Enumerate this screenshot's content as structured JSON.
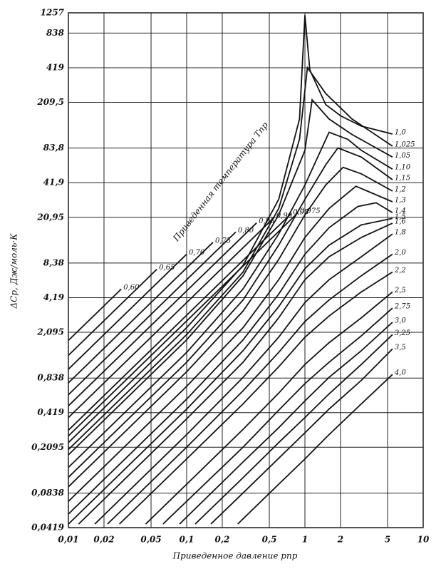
{
  "chart_data": {
    "type": "line",
    "xscale": "log",
    "yscale": "log",
    "grid": true,
    "color": "#111111",
    "ylabel": "ΔCp, Дж/моль·К",
    "xlabel": "Приведенное давление pпр",
    "annotation": "Приведенная температура Тпр",
    "xlim": [
      0.01,
      10
    ],
    "ylim": [
      0.0419,
      1257
    ],
    "xticks": [
      {
        "value": 0.01,
        "label": "0,01"
      },
      {
        "value": 0.02,
        "label": "0,02"
      },
      {
        "value": 0.05,
        "label": "0,05"
      },
      {
        "value": 0.1,
        "label": "0,1"
      },
      {
        "value": 0.2,
        "label": "0,2"
      },
      {
        "value": 0.5,
        "label": "0,5"
      },
      1,
      2,
      5,
      10
    ],
    "yticks": [
      {
        "value": 0.0419,
        "label": "0,0419"
      },
      {
        "value": 0.0838,
        "label": "0,0838"
      },
      {
        "value": 0.2095,
        "label": "0,2095"
      },
      {
        "value": 0.419,
        "label": "0,419"
      },
      {
        "value": 0.838,
        "label": "0,838"
      },
      {
        "value": 2.095,
        "label": "2,095"
      },
      {
        "value": 4.19,
        "label": "4,19"
      },
      {
        "value": 8.38,
        "label": "8,38"
      },
      {
        "value": 20.95,
        "label": "20,95"
      },
      {
        "value": 41.9,
        "label": "41,9"
      },
      {
        "value": 83.8,
        "label": "83,8"
      },
      {
        "value": 209.5,
        "label": "209,5"
      },
      419,
      838,
      1257
    ],
    "series": [
      {
        "name": "0,60",
        "x": [
          0.01,
          0.028
        ],
        "values": [
          1.78,
          4.98
        ]
      },
      {
        "name": "0,65",
        "x": [
          0.01,
          0.056
        ],
        "values": [
          1.32,
          7.4
        ]
      },
      {
        "name": "0,70",
        "x": [
          0.01,
          0.1
        ],
        "values": [
          1.0,
          10
        ]
      },
      {
        "name": "0,75",
        "x": [
          0.01,
          0.167
        ],
        "values": [
          0.76,
          12.7
        ]
      },
      {
        "name": "0,80",
        "x": [
          0.01,
          0.26
        ],
        "values": [
          0.6,
          15.6
        ]
      },
      {
        "name": "0,85",
        "x": [
          0.01,
          0.39
        ],
        "values": [
          0.48,
          18.7
        ]
      },
      {
        "name": "0,90",
        "x": [
          0.01,
          0.55
        ],
        "values": [
          0.38,
          20.9
        ]
      },
      {
        "name": "0,95",
        "x": [
          0.01,
          0.76
        ],
        "values": [
          0.295,
          22.4
        ]
      },
      {
        "name": "0,975",
        "x": [
          0.01,
          0.87
        ],
        "values": [
          0.263,
          22.9
        ]
      },
      {
        "name": "1,0",
        "x": [
          0.01,
          0.1,
          0.3,
          0.6,
          0.9,
          1.0,
          1.1,
          1.5,
          2,
          3,
          5.5
        ],
        "values": [
          0.23,
          2.3,
          8,
          30,
          150,
          1200,
          400,
          200,
          160,
          130,
          111
        ]
      },
      {
        "name": "1,025",
        "x": [
          0.01,
          0.1,
          0.3,
          0.6,
          0.9,
          1.05,
          1.5,
          2.5,
          5.5
        ],
        "values": [
          0.2,
          2.0,
          7,
          25,
          100,
          420,
          250,
          150,
          87
        ]
      },
      {
        "name": "1,05",
        "x": [
          0.01,
          0.1,
          0.3,
          0.6,
          1,
          1.15,
          1.6,
          2.5,
          5.5
        ],
        "values": [
          0.18,
          1.8,
          6.5,
          22,
          80,
          220,
          150,
          110,
          70
        ]
      },
      {
        "name": "1,10",
        "x": [
          0.01,
          0.1,
          0.3,
          0.6,
          1,
          1.6,
          2.3,
          3,
          5.5
        ],
        "values": [
          0.14,
          1.4,
          5,
          15,
          40,
          115,
          100,
          80,
          55
        ]
      },
      {
        "name": "1,15",
        "x": [
          0.01,
          0.1,
          0.3,
          0.6,
          1,
          1.5,
          1.9,
          3,
          5.5
        ],
        "values": [
          0.115,
          1.15,
          4,
          12,
          30,
          60,
          84,
          70,
          44.5
        ]
      },
      {
        "name": "1,2",
        "x": [
          0.01,
          0.1,
          0.3,
          0.6,
          1,
          1.5,
          2.1,
          3,
          5.5
        ],
        "values": [
          0.095,
          0.95,
          3.2,
          9,
          22,
          40,
          57,
          50,
          35.4
        ]
      },
      {
        "name": "1,3",
        "x": [
          0.01,
          0.1,
          0.3,
          0.6,
          1,
          1.6,
          2.7,
          5.5
        ],
        "values": [
          0.071,
          0.71,
          2.3,
          6,
          14,
          25,
          39,
          28.6
        ]
      },
      {
        "name": "1,4",
        "x": [
          0.01,
          0.1,
          0.3,
          0.6,
          1,
          1.6,
          2.8,
          4,
          5.5
        ],
        "values": [
          0.055,
          0.55,
          1.8,
          4.5,
          10,
          17,
          26,
          28,
          23
        ]
      },
      {
        "name": "1,5",
        "x": [
          0.01,
          0.1,
          0.3,
          0.6,
          1,
          1.6,
          3,
          5.5
        ],
        "values": [
          0.045,
          0.45,
          1.45,
          3.5,
          7.5,
          12,
          18,
          20.5
        ]
      },
      {
        "name": "1,6",
        "x": [
          0.0122,
          0.1,
          0.3,
          0.6,
          1,
          1.6,
          3,
          5.5
        ],
        "values": [
          0.045,
          0.37,
          1.15,
          2.8,
          6,
          9.5,
          14,
          18.6
        ]
      },
      {
        "name": "1,8",
        "x": [
          0.0167,
          0.1,
          0.3,
          0.6,
          1,
          1.6,
          3,
          5.5
        ],
        "values": [
          0.045,
          0.27,
          0.85,
          1.9,
          3.8,
          6,
          9.5,
          15
        ]
      },
      {
        "name": "2,0",
        "x": [
          0.0214,
          0.1,
          0.3,
          0.6,
          1,
          1.6,
          3,
          5.5
        ],
        "values": [
          0.045,
          0.21,
          0.65,
          1.4,
          2.6,
          4,
          6.5,
          10
        ]
      },
      {
        "name": "2,2",
        "x": [
          0.027,
          0.1,
          0.3,
          0.6,
          1,
          1.6,
          3,
          5.5
        ],
        "values": [
          0.045,
          0.166,
          0.5,
          1.05,
          1.9,
          2.9,
          4.7,
          7.0
        ]
      },
      {
        "name": "2,5",
        "x": [
          0.045,
          0.1,
          0.3,
          0.6,
          1,
          1.6,
          3,
          5.5
        ],
        "values": [
          0.045,
          0.1,
          0.3,
          0.62,
          1.1,
          1.7,
          2.8,
          4.7
        ]
      },
      {
        "name": "2,75",
        "x": [
          0.063,
          0.1,
          0.3,
          0.6,
          1,
          1.6,
          3,
          5.5
        ],
        "values": [
          0.045,
          0.071,
          0.21,
          0.44,
          0.75,
          1.15,
          1.95,
          3.4
        ]
      },
      {
        "name": "3,0",
        "x": [
          0.087,
          0.3,
          0.6,
          1,
          1.6,
          3,
          5.5
        ],
        "values": [
          0.045,
          0.156,
          0.31,
          0.53,
          0.85,
          1.45,
          2.56
        ]
      },
      {
        "name": "3,25",
        "x": [
          0.118,
          0.3,
          0.6,
          1,
          1.6,
          3,
          5.5
        ],
        "values": [
          0.045,
          0.114,
          0.23,
          0.38,
          0.61,
          1.1,
          2.0
        ]
      },
      {
        "name": "3,5",
        "x": [
          0.16,
          0.3,
          0.6,
          1,
          1.6,
          3,
          5.5
        ],
        "values": [
          0.045,
          0.084,
          0.168,
          0.28,
          0.45,
          0.8,
          1.5
        ]
      },
      {
        "name": "4,0",
        "x": [
          0.27,
          0.6,
          1,
          1.6,
          3,
          5.5
        ],
        "values": [
          0.045,
          0.1,
          0.166,
          0.27,
          0.5,
          0.9
        ]
      }
    ]
  }
}
